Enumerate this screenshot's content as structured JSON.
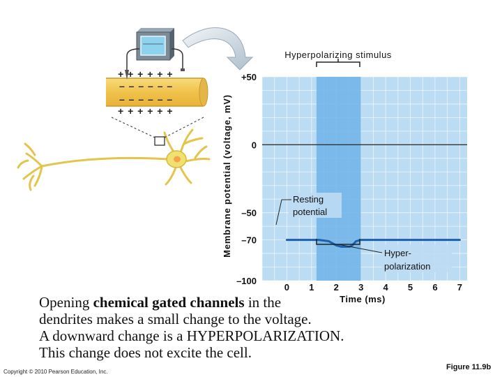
{
  "figure": {
    "stimulus_label": "Hyperpolarizing stimulus",
    "y_axis_label": "Membrane potential (voltage, mV)",
    "x_axis_label": "Time (ms)",
    "resting_label": [
      "Resting",
      "potential"
    ],
    "hyper_label": [
      "Hyper-",
      "polarization"
    ],
    "membrane_signs_top": "+ + + + + +",
    "membrane_signs_inner": "– – – – – –",
    "membrane_signs_bottom": "+ + + + + +"
  },
  "chart_data": {
    "type": "line",
    "x": [
      0,
      0.7,
      1.0,
      1.3,
      1.7,
      2.0,
      2.2,
      2.55,
      2.65,
      2.8,
      3.0,
      3.5,
      4,
      5,
      6,
      7
    ],
    "y": [
      -70,
      -70,
      -70,
      -70,
      -71,
      -74,
      -75,
      -75,
      -74,
      -71,
      -70,
      -70,
      -70,
      -70,
      -70,
      -70
    ],
    "xlim": [
      -1,
      7.3
    ],
    "ylim": [
      -100,
      50
    ],
    "x_ticks": [
      "0",
      "1",
      "2",
      "3",
      "4",
      "5",
      "6",
      "7"
    ],
    "y_ticks": [
      "+50",
      "0",
      "–50",
      "–70",
      "–100"
    ],
    "stimulus_interval": [
      1.2,
      3.0
    ],
    "threshold_line": 0,
    "colors": {
      "plot_bg": "#bcdcf3",
      "grid": "#ffffff",
      "stimulus": "#6fb3e6",
      "trace": "#1b5fae",
      "baseline": "#333333",
      "neuron": "#f1e070",
      "membrane": "#f3c64c"
    }
  },
  "caption": {
    "line1_pre": "Opening ",
    "line1_bold": "chemical gated channels",
    "line1_post": " in the",
    "line2": "dendrites makes a small change to the voltage.",
    "line3": "A downward change is a HYPERPOLARIZATION.",
    "line4": "This change does not excite the cell."
  },
  "footer": {
    "copyright": "Copyright © 2010 Pearson Education, Inc.",
    "figure_label": "Figure 11.9b"
  }
}
